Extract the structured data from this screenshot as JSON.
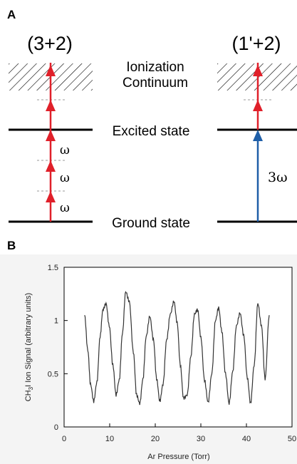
{
  "panel_a": {
    "letter": "A",
    "scheme_left": "(3+2)",
    "scheme_right": "(1'+2)",
    "continuum_line1": "Ionization",
    "continuum_line2": "Continuum",
    "excited_label": "Excited state",
    "ground_label": "Ground state",
    "omega_symbol": "ω",
    "three_omega_label": "3ω",
    "colors": {
      "red_arrow": "#e0202a",
      "blue_arrow": "#1f5fa8",
      "level": "#000000",
      "dashed": "#9a9a9a"
    }
  },
  "panel_b": {
    "letter": "B"
  },
  "chart_data": {
    "type": "line",
    "xlabel": "Ar Pressure (Torr)",
    "ylabel_prefix": "CH",
    "ylabel_sub": "3",
    "ylabel_suffix": "I Ion Signal (arbitrary units)",
    "xlim": [
      0,
      50
    ],
    "ylim": [
      0,
      1.5
    ],
    "x_ticks": [
      "0",
      "10",
      "20",
      "30",
      "40",
      "50"
    ],
    "y_ticks": [
      "0",
      "0.5",
      "1",
      "1.5"
    ],
    "series": [
      {
        "color": "#333333",
        "x": [
          4.5,
          5.2,
          5.8,
          6.5,
          7.2,
          7.9,
          8.5,
          9.2,
          9.9,
          10.7,
          11.4,
          12.1,
          12.8,
          13.5,
          14.3,
          15.2,
          15.9,
          16.6,
          17.3,
          18.0,
          18.8,
          19.6,
          20.3,
          21.0,
          21.7,
          22.5,
          23.3,
          24.1,
          24.8,
          25.5,
          26.2,
          27.0,
          27.8,
          28.6,
          29.3,
          30.0,
          30.8,
          31.6,
          32.4,
          33.2,
          33.9,
          34.6,
          35.4,
          36.2,
          37.0,
          37.8,
          38.6,
          39.4,
          40.2,
          40.9,
          41.7,
          42.5,
          43.3,
          44.1,
          45.0
        ],
        "y": [
          1.05,
          0.72,
          0.4,
          0.24,
          0.42,
          0.85,
          1.1,
          1.16,
          0.95,
          0.58,
          0.3,
          0.44,
          0.88,
          1.27,
          1.18,
          0.7,
          0.3,
          0.22,
          0.45,
          0.85,
          1.04,
          0.82,
          0.45,
          0.24,
          0.4,
          0.82,
          1.06,
          1.18,
          0.98,
          0.58,
          0.27,
          0.3,
          0.66,
          1.06,
          1.1,
          0.84,
          0.44,
          0.23,
          0.5,
          1.0,
          1.12,
          0.9,
          0.5,
          0.22,
          0.52,
          0.95,
          1.07,
          0.86,
          0.46,
          0.22,
          0.58,
          1.16,
          0.95,
          0.45,
          1.05
        ]
      }
    ]
  }
}
